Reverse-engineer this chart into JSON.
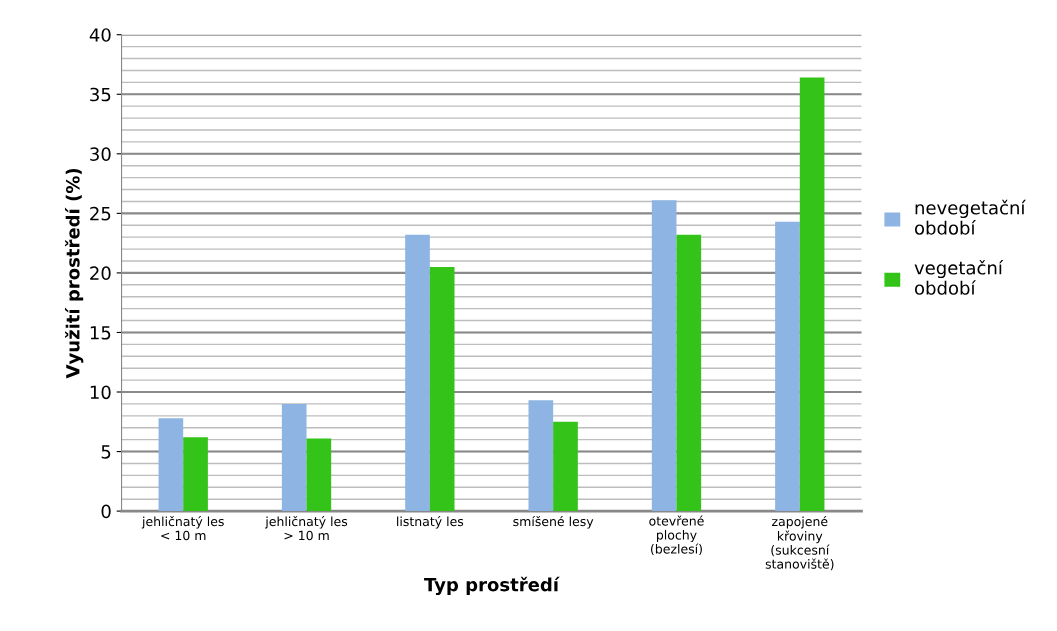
{
  "chart_data": {
    "type": "bar",
    "xlabel": "Typ prostředí",
    "ylabel": "Využití prostředí (%)",
    "categories": [
      "jehličnatý les\n< 10 m",
      "jehličnatý les\n> 10 m",
      "listnatý les",
      "smíšené lesy",
      "otevřené\nplochy\n(bezlesí)",
      "zapojené\nkřoviny\n(sukcesní\nstanoviště)"
    ],
    "series": [
      {
        "name": "nevegetační\nobdobí",
        "color": "#8db4e2",
        "values": [
          7.8,
          9.0,
          23.2,
          9.3,
          26.1,
          24.3
        ]
      },
      {
        "name": "vegetační\nobdobí",
        "color": "#33c319",
        "values": [
          6.2,
          6.1,
          20.5,
          7.5,
          23.2,
          36.4
        ]
      }
    ],
    "ylim": [
      0,
      40
    ],
    "yticks": [
      0,
      5,
      10,
      15,
      20,
      25,
      30,
      35,
      40
    ],
    "grid": "y",
    "legend": "right"
  }
}
